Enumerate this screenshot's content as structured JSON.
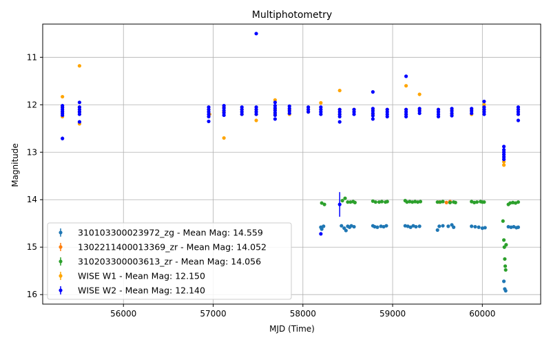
{
  "chart_data": {
    "type": "scatter",
    "title": "Multiphotometry",
    "xlabel": "MJD (Time)",
    "ylabel": "Magnitude",
    "xlim": [
      55100,
      60650
    ],
    "ylim": [
      10.3,
      16.2
    ],
    "y_inverted": true,
    "grid": true,
    "legend_position": "lower-left",
    "x_ticks": [
      56000,
      57000,
      58000,
      59000,
      60000
    ],
    "y_ticks": [
      11,
      12,
      13,
      14,
      15,
      16
    ],
    "series": [
      {
        "name": "310103300023972_zg - Mean Mag: 14.559",
        "color": "#1f77b4",
        "points": [
          [
            58200,
            14.58
          ],
          [
            58210,
            14.62
          ],
          [
            58230,
            14.56
          ],
          [
            58430,
            14.55
          ],
          [
            58460,
            14.6
          ],
          [
            58480,
            14.65
          ],
          [
            58500,
            14.56
          ],
          [
            58520,
            14.58
          ],
          [
            58540,
            14.55
          ],
          [
            58570,
            14.57
          ],
          [
            58780,
            14.55
          ],
          [
            58800,
            14.57
          ],
          [
            58830,
            14.58
          ],
          [
            58870,
            14.56
          ],
          [
            58900,
            14.57
          ],
          [
            58930,
            14.55
          ],
          [
            59140,
            14.55
          ],
          [
            59170,
            14.56
          ],
          [
            59200,
            14.58
          ],
          [
            59230,
            14.55
          ],
          [
            59260,
            14.57
          ],
          [
            59300,
            14.56
          ],
          [
            59500,
            14.64
          ],
          [
            59520,
            14.56
          ],
          [
            59560,
            14.55
          ],
          [
            59620,
            14.56
          ],
          [
            59660,
            14.53
          ],
          [
            59680,
            14.58
          ],
          [
            59880,
            14.56
          ],
          [
            59920,
            14.57
          ],
          [
            59960,
            14.58
          ],
          [
            60000,
            14.6
          ],
          [
            60030,
            14.59
          ],
          [
            60240,
            15.72
          ],
          [
            60250,
            15.88
          ],
          [
            60260,
            15.92
          ],
          [
            60290,
            14.57
          ],
          [
            60320,
            14.58
          ],
          [
            60350,
            14.57
          ],
          [
            60380,
            14.59
          ],
          [
            60400,
            14.58
          ]
        ]
      },
      {
        "name": "1302211400013369_zr - Mean Mag: 14.052",
        "color": "#ff7f0e",
        "points": [
          [
            59520,
            14.05
          ],
          [
            59600,
            14.06
          ],
          [
            59640,
            14.04
          ]
        ]
      },
      {
        "name": "310203300003613_zr - Mean Mag: 14.056",
        "color": "#2ca02c",
        "points": [
          [
            58210,
            14.07
          ],
          [
            58240,
            14.1
          ],
          [
            58440,
            14.02
          ],
          [
            58470,
            13.97
          ],
          [
            58500,
            14.05
          ],
          [
            58530,
            14.05
          ],
          [
            58560,
            14.04
          ],
          [
            58580,
            14.06
          ],
          [
            58780,
            14.03
          ],
          [
            58810,
            14.05
          ],
          [
            58850,
            14.05
          ],
          [
            58880,
            14.04
          ],
          [
            58920,
            14.05
          ],
          [
            58940,
            14.04
          ],
          [
            59140,
            14.02
          ],
          [
            59160,
            14.05
          ],
          [
            59190,
            14.04
          ],
          [
            59220,
            14.05
          ],
          [
            59250,
            14.04
          ],
          [
            59280,
            14.05
          ],
          [
            59310,
            14.04
          ],
          [
            59500,
            14.05
          ],
          [
            59530,
            14.05
          ],
          [
            59560,
            14.04
          ],
          [
            59640,
            14.06
          ],
          [
            59680,
            14.05
          ],
          [
            59700,
            14.06
          ],
          [
            59880,
            14.04
          ],
          [
            59910,
            14.06
          ],
          [
            59940,
            14.05
          ],
          [
            59980,
            14.04
          ],
          [
            60000,
            14.05
          ],
          [
            60020,
            14.05
          ],
          [
            60230,
            14.45
          ],
          [
            60240,
            14.85
          ],
          [
            60245,
            15.0
          ],
          [
            60250,
            15.25
          ],
          [
            60255,
            15.4
          ],
          [
            60260,
            15.48
          ],
          [
            60265,
            14.95
          ],
          [
            60290,
            14.1
          ],
          [
            60310,
            14.07
          ],
          [
            60340,
            14.06
          ],
          [
            60370,
            14.07
          ],
          [
            60400,
            14.05
          ]
        ]
      },
      {
        "name": "WISE W1 - Mean Mag: 12.150",
        "color": "#ffa500",
        "points": [
          [
            55320,
            11.83
          ],
          [
            55320,
            12.05
          ],
          [
            55320,
            12.15
          ],
          [
            55320,
            12.25
          ],
          [
            55510,
            11.18
          ],
          [
            55510,
            12.05
          ],
          [
            55510,
            12.15
          ],
          [
            55510,
            12.4
          ],
          [
            56950,
            12.1
          ],
          [
            56960,
            12.2
          ],
          [
            57120,
            12.05
          ],
          [
            57120,
            12.15
          ],
          [
            57120,
            12.7
          ],
          [
            57320,
            12.1
          ],
          [
            57320,
            12.2
          ],
          [
            57480,
            12.1
          ],
          [
            57480,
            12.2
          ],
          [
            57480,
            12.33
          ],
          [
            57690,
            11.9
          ],
          [
            57690,
            12.1
          ],
          [
            57690,
            12.2
          ],
          [
            57850,
            12.1
          ],
          [
            57850,
            12.2
          ],
          [
            58060,
            12.1
          ],
          [
            58060,
            12.15
          ],
          [
            58200,
            11.96
          ],
          [
            58410,
            11.7
          ],
          [
            58410,
            12.1
          ],
          [
            58410,
            12.2
          ],
          [
            58570,
            12.1
          ],
          [
            58780,
            12.1
          ],
          [
            58780,
            12.2
          ],
          [
            58940,
            12.1
          ],
          [
            59150,
            11.6
          ],
          [
            59150,
            12.1
          ],
          [
            59150,
            12.2
          ],
          [
            59300,
            11.78
          ],
          [
            59300,
            12.1
          ],
          [
            59510,
            12.1
          ],
          [
            59660,
            12.1
          ],
          [
            59660,
            12.2
          ],
          [
            59880,
            12.1
          ],
          [
            59880,
            12.2
          ],
          [
            60020,
            12.1
          ],
          [
            60020,
            12.0
          ],
          [
            60240,
            13.2
          ],
          [
            60240,
            13.27
          ],
          [
            60400,
            12.1
          ],
          [
            60400,
            12.2
          ]
        ]
      },
      {
        "name": "WISE W2 - Mean Mag: 12.140",
        "color": "#0000ff",
        "points": [
          [
            55320,
            12.02
          ],
          [
            55320,
            12.06
          ],
          [
            55320,
            12.1
          ],
          [
            55320,
            12.14
          ],
          [
            55320,
            12.18
          ],
          [
            55320,
            12.22
          ],
          [
            55320,
            12.71
          ],
          [
            55510,
            11.95
          ],
          [
            55510,
            12.05
          ],
          [
            55510,
            12.1
          ],
          [
            55510,
            12.15
          ],
          [
            55510,
            12.2
          ],
          [
            55510,
            12.36
          ],
          [
            56950,
            12.05
          ],
          [
            56950,
            12.1
          ],
          [
            56950,
            12.15
          ],
          [
            56950,
            12.2
          ],
          [
            56950,
            12.25
          ],
          [
            56950,
            12.35
          ],
          [
            57120,
            12.02
          ],
          [
            57120,
            12.07
          ],
          [
            57120,
            12.12
          ],
          [
            57120,
            12.17
          ],
          [
            57120,
            12.22
          ],
          [
            57320,
            12.05
          ],
          [
            57320,
            12.1
          ],
          [
            57320,
            12.15
          ],
          [
            57320,
            12.2
          ],
          [
            57480,
            10.5
          ],
          [
            57480,
            12.05
          ],
          [
            57480,
            12.1
          ],
          [
            57480,
            12.15
          ],
          [
            57480,
            12.2
          ],
          [
            57690,
            11.95
          ],
          [
            57690,
            12.02
          ],
          [
            57690,
            12.07
          ],
          [
            57690,
            12.12
          ],
          [
            57690,
            12.17
          ],
          [
            57690,
            12.22
          ],
          [
            57690,
            12.3
          ],
          [
            57850,
            12.03
          ],
          [
            57850,
            12.08
          ],
          [
            57850,
            12.13
          ],
          [
            57850,
            12.18
          ],
          [
            58060,
            12.05
          ],
          [
            58060,
            12.1
          ],
          [
            58060,
            12.15
          ],
          [
            58200,
            12.05
          ],
          [
            58200,
            12.1
          ],
          [
            58200,
            12.15
          ],
          [
            58200,
            12.2
          ],
          [
            58200,
            14.72
          ],
          [
            58410,
            12.1
          ],
          [
            58410,
            12.15
          ],
          [
            58410,
            12.2
          ],
          [
            58410,
            12.25
          ],
          [
            58410,
            12.36
          ],
          [
            58410,
            14.1
          ],
          [
            58570,
            12.1
          ],
          [
            58570,
            12.15
          ],
          [
            58570,
            12.2
          ],
          [
            58780,
            11.73
          ],
          [
            58780,
            12.08
          ],
          [
            58780,
            12.13
          ],
          [
            58780,
            12.18
          ],
          [
            58780,
            12.23
          ],
          [
            58780,
            12.3
          ],
          [
            58940,
            12.1
          ],
          [
            58940,
            12.15
          ],
          [
            58940,
            12.2
          ],
          [
            58940,
            12.25
          ],
          [
            59150,
            11.4
          ],
          [
            59150,
            12.1
          ],
          [
            59150,
            12.15
          ],
          [
            59150,
            12.2
          ],
          [
            59150,
            12.25
          ],
          [
            59300,
            12.08
          ],
          [
            59300,
            12.13
          ],
          [
            59300,
            12.18
          ],
          [
            59510,
            12.1
          ],
          [
            59510,
            12.15
          ],
          [
            59510,
            12.2
          ],
          [
            59510,
            12.25
          ],
          [
            59660,
            12.08
          ],
          [
            59660,
            12.13
          ],
          [
            59660,
            12.18
          ],
          [
            59660,
            12.23
          ],
          [
            59880,
            12.08
          ],
          [
            59880,
            12.13
          ],
          [
            59880,
            12.18
          ],
          [
            60020,
            11.93
          ],
          [
            60020,
            12.05
          ],
          [
            60020,
            12.1
          ],
          [
            60020,
            12.15
          ],
          [
            60020,
            12.2
          ],
          [
            60240,
            12.88
          ],
          [
            60240,
            12.95
          ],
          [
            60240,
            13.0
          ],
          [
            60240,
            13.05
          ],
          [
            60240,
            13.1
          ],
          [
            60240,
            13.15
          ],
          [
            60400,
            12.05
          ],
          [
            60400,
            12.1
          ],
          [
            60400,
            12.15
          ],
          [
            60400,
            12.2
          ],
          [
            60400,
            12.33
          ]
        ]
      }
    ],
    "errorbars": [
      {
        "series": 4,
        "x": 55320,
        "y": 12.71,
        "err": 0.04
      },
      {
        "series": 4,
        "x": 58410,
        "y": 14.1,
        "err": 0.26
      },
      {
        "series": 4,
        "x": 60240,
        "y": 13.0,
        "err": 0.15
      }
    ]
  }
}
